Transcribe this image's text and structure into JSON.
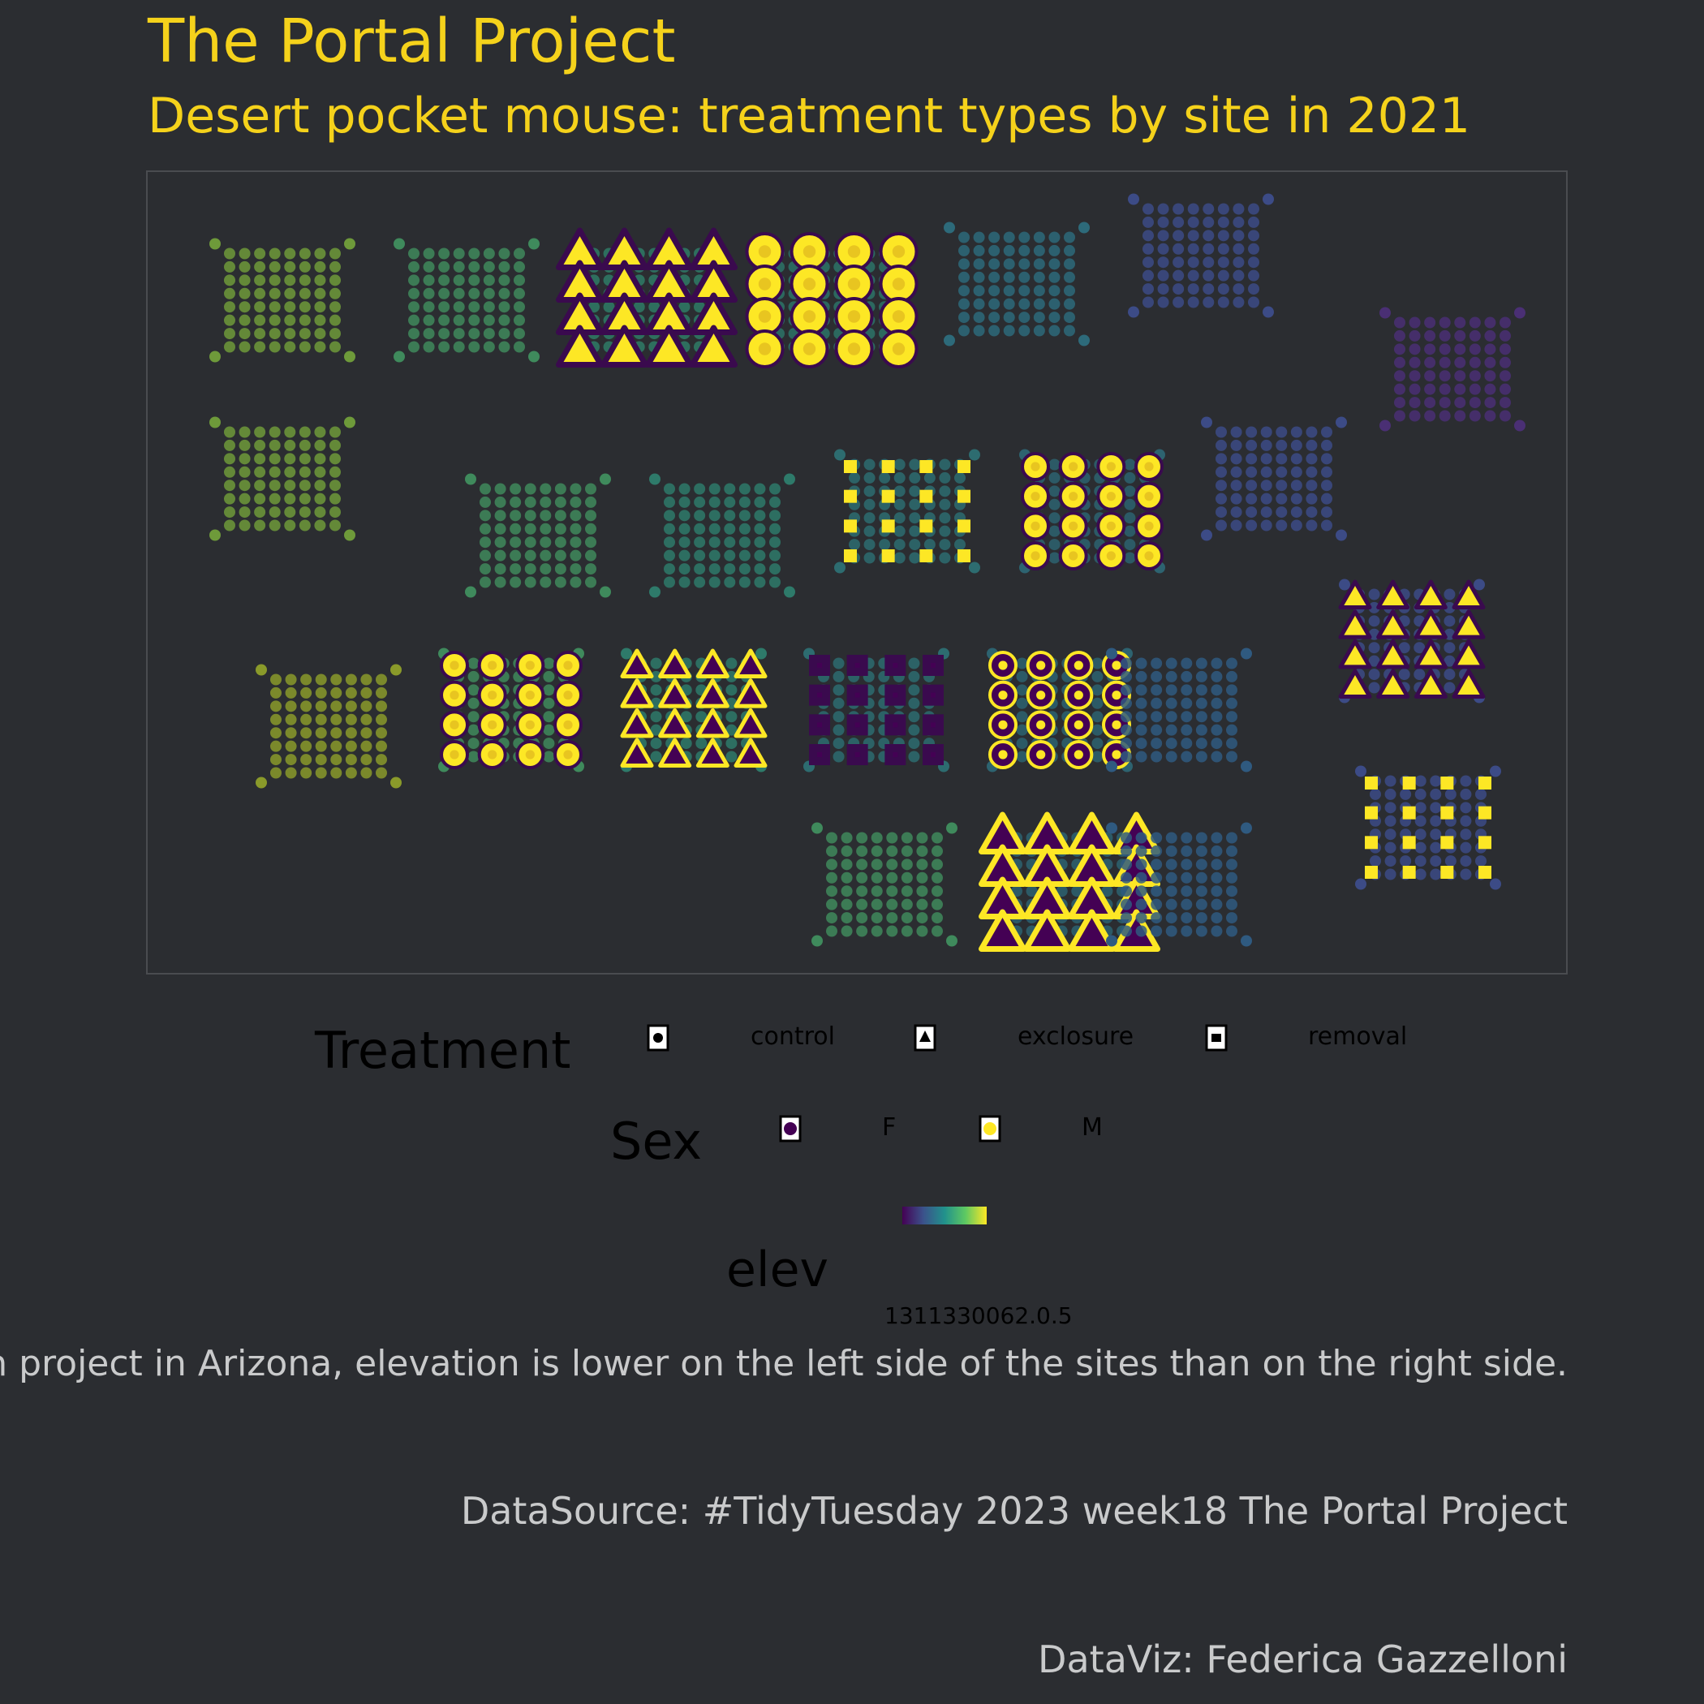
{
  "header": {
    "title": "The Portal Project",
    "subtitle": "Desert pocket mouse: treatment types by site in 2021"
  },
  "legend": {
    "treatment_title": "Treatment",
    "treatment_items": [
      {
        "label": "control",
        "shape": "circle"
      },
      {
        "label": "exclosure",
        "shape": "triangle"
      },
      {
        "label": "removal",
        "shape": "square"
      }
    ],
    "sex_title": "Sex",
    "sex_items": [
      {
        "label": "F",
        "color": "#440154"
      },
      {
        "label": "M",
        "color": "#fde725"
      }
    ],
    "elev_title": "elev",
    "elev_ticks_text": "1311330062.0.5",
    "elev_palette": [
      "#440154",
      "#3b528b",
      "#21918c",
      "#5ec962",
      "#fde725"
    ]
  },
  "caption": {
    "text": "h project in Arizona, elevation is lower on the left side of the sites than on the right side.",
    "source": "DataSource: #TidyTuesday 2023 week18 The Portal Project",
    "credit": "DataViz: Federica Gazzelloni"
  },
  "chart_data": {
    "type": "scatter",
    "description_units": "site grid column/row index",
    "grid_colors": {
      "background_dots": "color by elevation (viridis)",
      "female": "#440154",
      "male": "#fde725"
    },
    "sites": [
      {
        "col": 0,
        "row": 0,
        "elev_color": "#6e9a3a",
        "treatment": null,
        "sex": null
      },
      {
        "col": 1,
        "row": 0,
        "elev_color": "#3f8a5c",
        "treatment": null,
        "sex": null
      },
      {
        "col": 2,
        "row": 0,
        "elev_color": "#2f7b66",
        "treatment": "exclosure",
        "sex": "M"
      },
      {
        "col": 3,
        "row": 0,
        "elev_color": "#2d7367",
        "treatment": "control",
        "sex": "M"
      },
      {
        "col": 4,
        "row": 0,
        "elev_color": "#2d6a7a",
        "treatment": null,
        "sex": null
      },
      {
        "col": 5,
        "row": 0,
        "elev_color": "#3c4b86",
        "treatment": null,
        "sex": null
      },
      {
        "col": 6,
        "row": 0,
        "elev_color": "#4a2f74",
        "treatment": null,
        "sex": null
      },
      {
        "col": 0,
        "row": 1,
        "elev_color": "#6e9a3a",
        "treatment": null,
        "sex": null
      },
      {
        "col": 1,
        "row": 1,
        "elev_color": "#3f8a5c",
        "treatment": null,
        "sex": null
      },
      {
        "col": 2,
        "row": 1,
        "elev_color": "#2e7a6a",
        "treatment": null,
        "sex": null
      },
      {
        "col": 3,
        "row": 1,
        "elev_color": "#2d6c70",
        "treatment": "removal",
        "sex": "M"
      },
      {
        "col": 4,
        "row": 1,
        "elev_color": "#2d6370",
        "treatment": "control",
        "sex": "M"
      },
      {
        "col": 5,
        "row": 1,
        "elev_color": "#3c4b86",
        "treatment": null,
        "sex": null
      },
      {
        "col": 0,
        "row": 2,
        "elev_color": "#8a9a2a",
        "treatment": null,
        "sex": null
      },
      {
        "col": 1,
        "row": 2,
        "elev_color": "#3f8a5c",
        "treatment": "control",
        "sex": "M"
      },
      {
        "col": 2,
        "row": 2,
        "elev_color": "#2e7a6a",
        "treatment": "exclosure",
        "sex": "F"
      },
      {
        "col": 3,
        "row": 2,
        "elev_color": "#2d6c70",
        "treatment": "removal",
        "sex": "F"
      },
      {
        "col": 4,
        "row": 2,
        "elev_color": "#2d6370",
        "treatment": "control",
        "sex": "F"
      },
      {
        "col": 5,
        "row": 2,
        "elev_color": "#2f5a80",
        "treatment": null,
        "sex": null
      },
      {
        "col": 6,
        "row": 2,
        "elev_color": "#3c4b86",
        "treatment": "exclosure",
        "sex": "M"
      },
      {
        "col": 3,
        "row": 3,
        "elev_color": "#3f8a5c",
        "treatment": null,
        "sex": null
      },
      {
        "col": 4,
        "row": 3,
        "elev_color": "#2d6370",
        "treatment": "exclosure",
        "sex": "F"
      },
      {
        "col": 5,
        "row": 3,
        "elev_color": "#2f5a80",
        "treatment": null,
        "sex": null
      },
      {
        "col": 6,
        "row": 3,
        "elev_color": "#3c4b86",
        "treatment": "removal",
        "sex": "M"
      }
    ]
  }
}
